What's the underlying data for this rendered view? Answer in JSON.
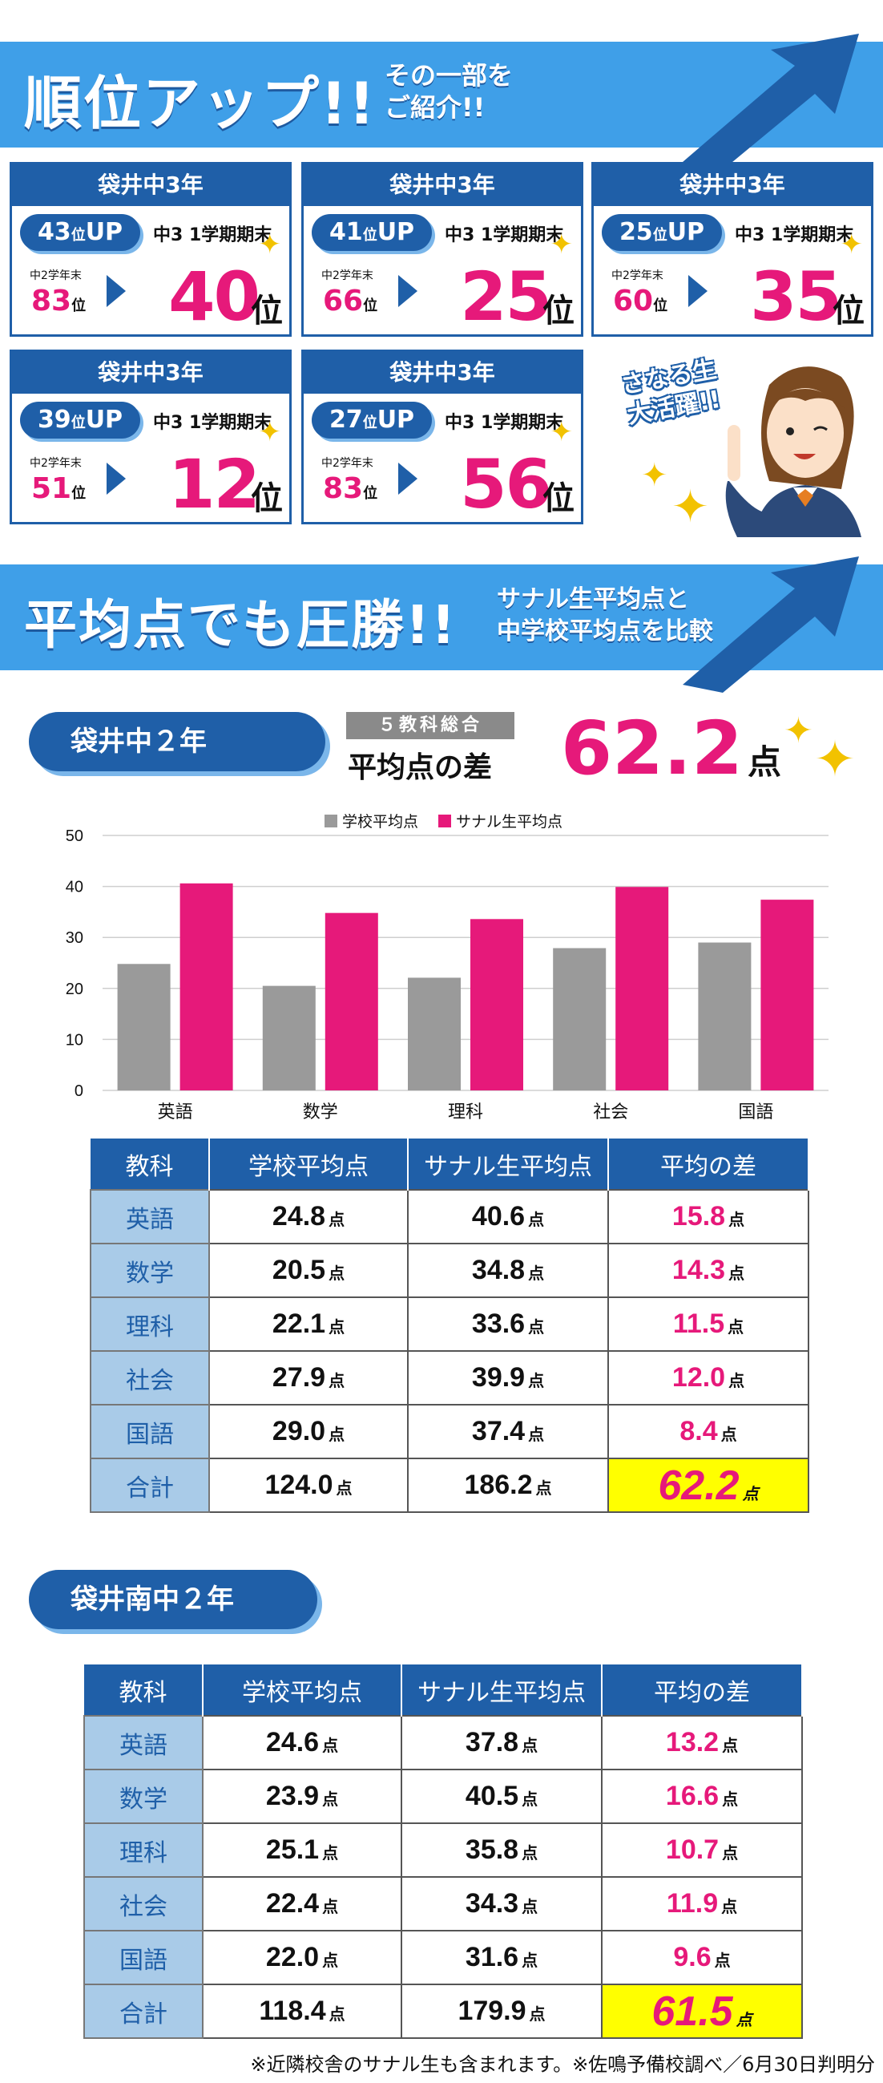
{
  "section1": {
    "title": "順位アップ!!",
    "sub1": "その一部を",
    "sub2": "ご紹介!!"
  },
  "cards": [
    {
      "school": "袋井中3年",
      "up": "43",
      "up_unit": "位",
      "up_label": "UP",
      "term": "中3 1学期期末",
      "prev_label": "中2学年末",
      "prev": "83",
      "prev_unit": "位",
      "now": "40",
      "now_unit": "位"
    },
    {
      "school": "袋井中3年",
      "up": "41",
      "up_unit": "位",
      "up_label": "UP",
      "term": "中3 1学期期末",
      "prev_label": "中2学年末",
      "prev": "66",
      "prev_unit": "位",
      "now": "25",
      "now_unit": "位"
    },
    {
      "school": "袋井中3年",
      "up": "25",
      "up_unit": "位",
      "up_label": "UP",
      "term": "中3 1学期期末",
      "prev_label": "中2学年末",
      "prev": "60",
      "prev_unit": "位",
      "now": "35",
      "now_unit": "位"
    },
    {
      "school": "袋井中3年",
      "up": "39",
      "up_unit": "位",
      "up_label": "UP",
      "term": "中3 1学期期末",
      "prev_label": "中2学年末",
      "prev": "51",
      "prev_unit": "位",
      "now": "12",
      "now_unit": "位"
    },
    {
      "school": "袋井中3年",
      "up": "27",
      "up_unit": "位",
      "up_label": "UP",
      "term": "中3 1学期期末",
      "prev_label": "中2学年末",
      "prev": "83",
      "prev_unit": "位",
      "now": "56",
      "now_unit": "位"
    }
  ],
  "badge": {
    "line1": "さなる生",
    "line2": "大活躍!!"
  },
  "section2": {
    "title": "平均点でも圧勝!!",
    "sub1": "サナル生平均点と",
    "sub2": "中学校平均点を比較"
  },
  "school1": {
    "name": "袋井中２年",
    "tag": "５教科総合",
    "diff_label": "平均点の差",
    "diff_value": "62.2",
    "diff_unit": "点"
  },
  "chart_data": {
    "type": "bar",
    "categories": [
      "英語",
      "数学",
      "理科",
      "社会",
      "国語"
    ],
    "series": [
      {
        "name": "学校平均点",
        "values": [
          24.8,
          20.5,
          22.1,
          27.9,
          29.0
        ],
        "color": "#9a9a9a"
      },
      {
        "name": "サナル生平均点",
        "values": [
          40.6,
          34.8,
          33.6,
          39.9,
          37.4
        ],
        "color": "#e6197a"
      }
    ],
    "ylim": [
      0,
      50
    ],
    "yticks": [
      0,
      10,
      20,
      30,
      40,
      50
    ],
    "legend": "top",
    "grid": true
  },
  "table_headers": [
    "教科",
    "学校平均点",
    "サナル生平均点",
    "平均の差"
  ],
  "unit": "点",
  "table1": [
    [
      "英語",
      "24.8",
      "40.6",
      "15.8"
    ],
    [
      "数学",
      "20.5",
      "34.8",
      "14.3"
    ],
    [
      "理科",
      "22.1",
      "33.6",
      "11.5"
    ],
    [
      "社会",
      "27.9",
      "39.9",
      "12.0"
    ],
    [
      "国語",
      "29.0",
      "37.4",
      "8.4"
    ],
    [
      "合計",
      "124.0",
      "186.2",
      "62.2"
    ]
  ],
  "school2": {
    "name": "袋井南中２年"
  },
  "table2": [
    [
      "英語",
      "24.6",
      "37.8",
      "13.2"
    ],
    [
      "数学",
      "23.9",
      "40.5",
      "16.6"
    ],
    [
      "理科",
      "25.1",
      "35.8",
      "10.7"
    ],
    [
      "社会",
      "22.4",
      "34.3",
      "11.9"
    ],
    [
      "国語",
      "22.0",
      "31.6",
      "9.6"
    ],
    [
      "合計",
      "118.4",
      "179.9",
      "61.5"
    ]
  ],
  "footnote": "※近隣校舎のサナル生も含まれます。※佐鳴予備校調べ／6月30日判明分",
  "colors": {
    "blue": "#1f5fa8",
    "light_blue": "#3f9fe8",
    "pink": "#e6197a",
    "gray": "#9a9a9a",
    "highlight": "#ffff00"
  }
}
